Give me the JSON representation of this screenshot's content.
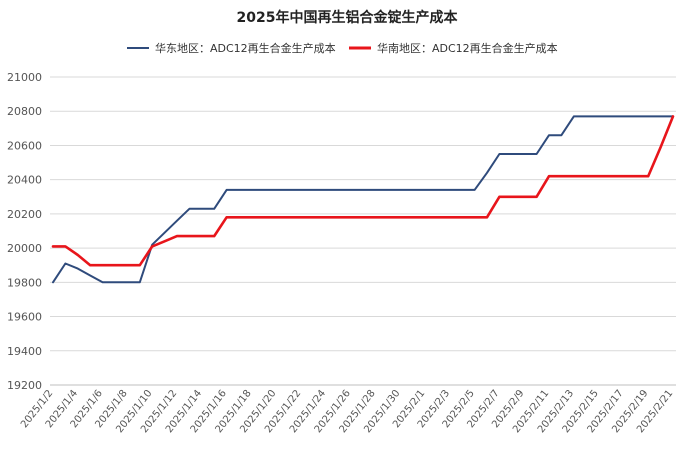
{
  "chart_data": {
    "type": "line",
    "title": "2025年中国再生铝合金锭生产成本",
    "xlabel": "",
    "ylabel": "",
    "ylim": [
      19200,
      21000
    ],
    "yticks": [
      19200,
      19400,
      19600,
      19800,
      20000,
      20200,
      20400,
      20600,
      20800,
      21000
    ],
    "legend_position": "top-center",
    "grid": {
      "horizontal": true,
      "vertical": false
    },
    "x": [
      "2025/1/2",
      "2025/1/3",
      "2025/1/4",
      "2025/1/5",
      "2025/1/6",
      "2025/1/7",
      "2025/1/8",
      "2025/1/9",
      "2025/1/10",
      "2025/1/11",
      "2025/1/12",
      "2025/1/13",
      "2025/1/14",
      "2025/1/15",
      "2025/1/16",
      "2025/1/17",
      "2025/1/18",
      "2025/1/19",
      "2025/1/20",
      "2025/1/21",
      "2025/1/22",
      "2025/1/23",
      "2025/1/24",
      "2025/1/25",
      "2025/1/26",
      "2025/1/27",
      "2025/1/28",
      "2025/1/29",
      "2025/1/30",
      "2025/1/31",
      "2025/2/1",
      "2025/2/2",
      "2025/2/3",
      "2025/2/4",
      "2025/2/5",
      "2025/2/6",
      "2025/2/7",
      "2025/2/8",
      "2025/2/9",
      "2025/2/10",
      "2025/2/11",
      "2025/2/12",
      "2025/2/13",
      "2025/2/14",
      "2025/2/15",
      "2025/2/16",
      "2025/2/17",
      "2025/2/18",
      "2025/2/19",
      "2025/2/20",
      "2025/2/21"
    ],
    "series": [
      {
        "name": "华东地区：ADC12再生合金生产成本",
        "color": "#2f4b7c",
        "values": [
          19800,
          19910,
          19880,
          19840,
          19800,
          19800,
          19800,
          19800,
          20020,
          20090,
          20160,
          20230,
          20230,
          20230,
          20340,
          20340,
          20340,
          20340,
          20340,
          20340,
          20340,
          20340,
          20340,
          20340,
          20340,
          20340,
          20340,
          20340,
          20340,
          20340,
          20340,
          20340,
          20340,
          20340,
          20340,
          20440,
          20550,
          20550,
          20550,
          20550,
          20660,
          20660,
          20770,
          20770,
          20770,
          20770,
          20770,
          20770,
          20770,
          20770,
          20770
        ]
      },
      {
        "name": "华南地区：ADC12再生合金生产成本",
        "color": "#e8151b",
        "values": [
          20010,
          20010,
          19960,
          19900,
          19900,
          19900,
          19900,
          19900,
          20010,
          20040,
          20070,
          20070,
          20070,
          20070,
          20180,
          20180,
          20180,
          20180,
          20180,
          20180,
          20180,
          20180,
          20180,
          20180,
          20180,
          20180,
          20180,
          20180,
          20180,
          20180,
          20180,
          20180,
          20180,
          20180,
          20180,
          20180,
          20300,
          20300,
          20300,
          20300,
          20420,
          20420,
          20420,
          20420,
          20420,
          20420,
          20420,
          20420,
          20420,
          20590,
          20770
        ]
      }
    ]
  }
}
